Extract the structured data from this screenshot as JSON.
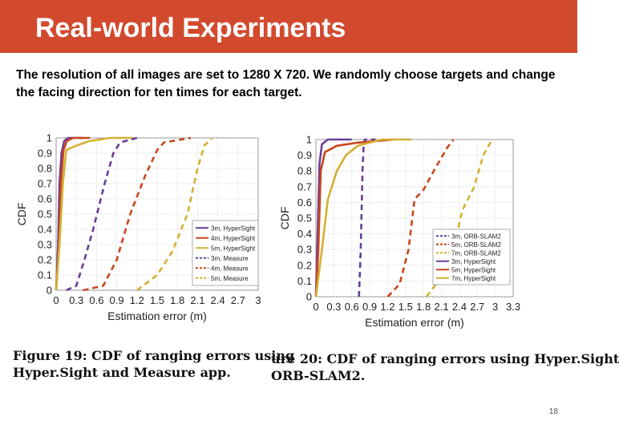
{
  "slide": {
    "title": "Real-world Experiments",
    "intro": "The resolution of all images are set to 1280 X 720. We randomly choose targets and change the facing direction for ten times for each target.",
    "page_number": "18",
    "accent_color": "#d24a2e"
  },
  "captions": [
    {
      "lines": [
        "Figure 19: CDF of ranging errors using",
        "Hyper.Sight and Measure app."
      ]
    },
    {
      "lines": [
        "ure 20: CDF of ranging errors using Hyper.Sight",
        "ORB-SLAM2."
      ]
    }
  ],
  "chart_data": [
    {
      "type": "line",
      "xlabel": "Estimation error (m)",
      "ylabel": "CDF",
      "xlim": [
        0,
        3
      ],
      "ylim": [
        0,
        1
      ],
      "grid": true,
      "legend_position": "bottom-right",
      "x_ticks": [
        "0",
        "0.3",
        "0.6",
        "0.9",
        "1.2",
        "1.5",
        "1.8",
        "2.1",
        "2.4",
        "2.7",
        "3"
      ],
      "y_ticks": [
        "0",
        "0.1",
        "0.2",
        "0.3",
        "0.4",
        "0.5",
        "0.6",
        "0.7",
        "0.8",
        "0.9",
        "1"
      ],
      "series": [
        {
          "name": "3m, HyperSight",
          "color": "#6a3d9a",
          "dash": false,
          "points": [
            [
              0,
              0
            ],
            [
              0.03,
              0.3
            ],
            [
              0.05,
              0.7
            ],
            [
              0.08,
              0.9
            ],
            [
              0.12,
              0.98
            ],
            [
              0.18,
              1
            ],
            [
              0.4,
              1
            ]
          ]
        },
        {
          "name": "4m, HyperSight",
          "color": "#c8451b",
          "dash": false,
          "points": [
            [
              0,
              0
            ],
            [
              0.04,
              0.3
            ],
            [
              0.07,
              0.7
            ],
            [
              0.11,
              0.92
            ],
            [
              0.16,
              0.98
            ],
            [
              0.25,
              1
            ],
            [
              0.5,
              1
            ]
          ]
        },
        {
          "name": "5m, HyperSight",
          "color": "#d4b033",
          "dash": false,
          "points": [
            [
              0,
              0
            ],
            [
              0.05,
              0.3
            ],
            [
              0.1,
              0.7
            ],
            [
              0.15,
              0.92
            ],
            [
              0.3,
              0.95
            ],
            [
              0.5,
              0.98
            ],
            [
              0.8,
              1
            ],
            [
              1.15,
              1
            ]
          ]
        },
        {
          "name": "3m, Measure",
          "color": "#6a3d9a",
          "dash": true,
          "points": [
            [
              0.15,
              0
            ],
            [
              0.3,
              0.03
            ],
            [
              0.42,
              0.2
            ],
            [
              0.55,
              0.4
            ],
            [
              0.72,
              0.7
            ],
            [
              0.85,
              0.9
            ],
            [
              0.95,
              0.97
            ],
            [
              1.2,
              1
            ]
          ]
        },
        {
          "name": "4m, Measure",
          "color": "#c8451b",
          "dash": true,
          "points": [
            [
              0.4,
              0
            ],
            [
              0.7,
              0.03
            ],
            [
              0.9,
              0.2
            ],
            [
              1.1,
              0.5
            ],
            [
              1.32,
              0.75
            ],
            [
              1.5,
              0.92
            ],
            [
              1.6,
              0.97
            ],
            [
              2.0,
              1
            ]
          ]
        },
        {
          "name": "5m, Measure",
          "color": "#d4b033",
          "dash": true,
          "points": [
            [
              1.2,
              0
            ],
            [
              1.5,
              0.1
            ],
            [
              1.72,
              0.25
            ],
            [
              1.95,
              0.5
            ],
            [
              2.1,
              0.8
            ],
            [
              2.2,
              0.95
            ],
            [
              2.32,
              1
            ]
          ]
        }
      ]
    },
    {
      "type": "line",
      "xlabel": "Estimation error (m)",
      "ylabel": "CDF",
      "xlim": [
        0,
        3.3
      ],
      "ylim": [
        0,
        1
      ],
      "grid": true,
      "legend_position": "bottom-right",
      "x_ticks": [
        "0",
        "0.3",
        "0.6",
        "0.9",
        "1.2",
        "1.5",
        "1.8",
        "2.1",
        "2.4",
        "2.7",
        "3",
        "3.3"
      ],
      "y_ticks": [
        "0",
        "0.1",
        "0.2",
        "0.3",
        "0.4",
        "0.5",
        "0.6",
        "0.7",
        "0.8",
        "0.9",
        "1"
      ],
      "series": [
        {
          "name": "3m, ORB-SLAM2",
          "color": "#6a3d9a",
          "dash": true,
          "points": [
            [
              0.72,
              0
            ],
            [
              0.75,
              0.3
            ],
            [
              0.78,
              0.8
            ],
            [
              0.8,
              0.97
            ],
            [
              0.82,
              1
            ],
            [
              1.0,
              1
            ]
          ]
        },
        {
          "name": "5m, ORB-SLAM2",
          "color": "#c8451b",
          "dash": true,
          "points": [
            [
              1.2,
              0
            ],
            [
              1.4,
              0.08
            ],
            [
              1.55,
              0.3
            ],
            [
              1.65,
              0.62
            ],
            [
              1.8,
              0.68
            ],
            [
              2.0,
              0.82
            ],
            [
              2.2,
              0.95
            ],
            [
              2.3,
              1
            ]
          ]
        },
        {
          "name": "7m, ORB-SLAM2",
          "color": "#d4b033",
          "dash": true,
          "points": [
            [
              1.85,
              0
            ],
            [
              2.05,
              0.1
            ],
            [
              2.3,
              0.3
            ],
            [
              2.45,
              0.55
            ],
            [
              2.65,
              0.7
            ],
            [
              2.8,
              0.9
            ],
            [
              2.95,
              1
            ]
          ]
        },
        {
          "name": "3m, HyperSight",
          "color": "#6a3d9a",
          "dash": false,
          "points": [
            [
              0,
              0
            ],
            [
              0.03,
              0.4
            ],
            [
              0.06,
              0.85
            ],
            [
              0.1,
              0.97
            ],
            [
              0.2,
              1
            ],
            [
              0.6,
              1
            ]
          ]
        },
        {
          "name": "5m, HyperSight",
          "color": "#c8451b",
          "dash": false,
          "points": [
            [
              0,
              0
            ],
            [
              0.04,
              0.3
            ],
            [
              0.08,
              0.8
            ],
            [
              0.15,
              0.92
            ],
            [
              0.35,
              0.96
            ],
            [
              0.7,
              0.98
            ],
            [
              1.3,
              1
            ]
          ]
        },
        {
          "name": "7m, HyperSight",
          "color": "#d4b033",
          "dash": false,
          "points": [
            [
              0,
              0
            ],
            [
              0.1,
              0.3
            ],
            [
              0.2,
              0.62
            ],
            [
              0.35,
              0.8
            ],
            [
              0.5,
              0.9
            ],
            [
              0.7,
              0.96
            ],
            [
              1.1,
              1
            ],
            [
              1.6,
              1
            ]
          ]
        }
      ]
    }
  ]
}
